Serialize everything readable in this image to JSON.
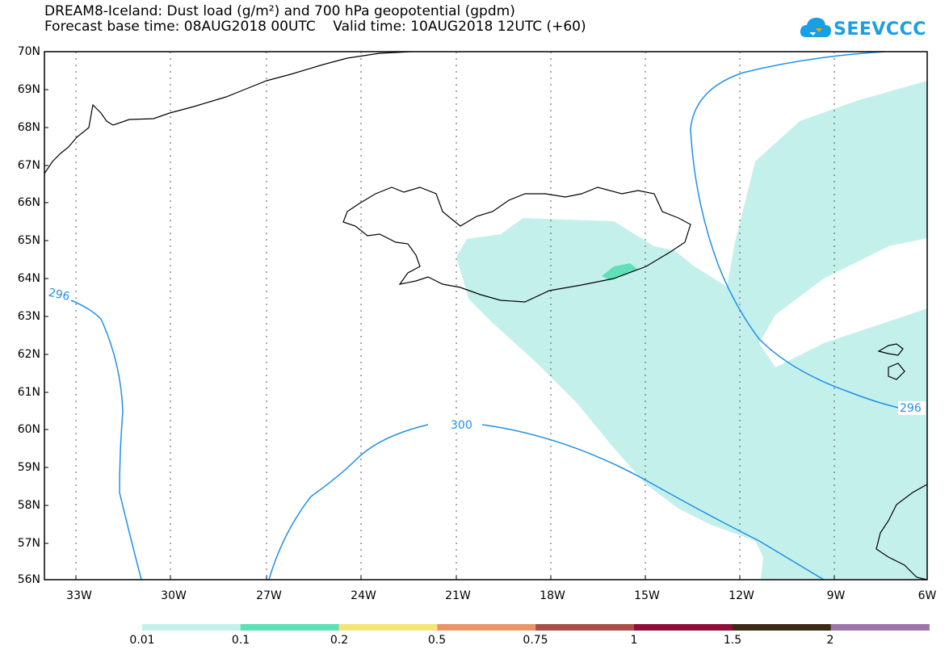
{
  "title_line1": "DREAM8-Iceland: Dust load (g/m²) and 700 hPa geopotential (gpdm)",
  "title_line2": "Forecast base time: 08AUG2018 00UTC    Valid time: 10AUG2018 12UTC (+60)",
  "logo_text": "SEEVCCC",
  "lat_labels": [
    "70N",
    "69N",
    "68N",
    "67N",
    "66N",
    "65N",
    "64N",
    "63N",
    "62N",
    "61N",
    "60N",
    "59N",
    "58N",
    "57N",
    "56N"
  ],
  "lon_labels": [
    "33W",
    "30W",
    "27W",
    "24W",
    "21W",
    "18W",
    "15W",
    "12W",
    "9W",
    "6W"
  ],
  "contour_labels": [
    "296",
    "296",
    "300"
  ],
  "colorbar": {
    "colors": [
      "#c4f0ec",
      "#5fe0b6",
      "#f3e57a",
      "#e8956a",
      "#a84f4a",
      "#8d0f3a",
      "#3c2a14",
      "#9c76a8"
    ],
    "labels": [
      "0.01",
      "0.1",
      "0.2",
      "0.5",
      "0.75",
      "1",
      "1.5",
      "2"
    ]
  },
  "colors": {
    "dust_low": "#c4f0ec",
    "dust_mid": "#5fe0b6",
    "contour": "#1e90e8",
    "coast": "#000000"
  }
}
